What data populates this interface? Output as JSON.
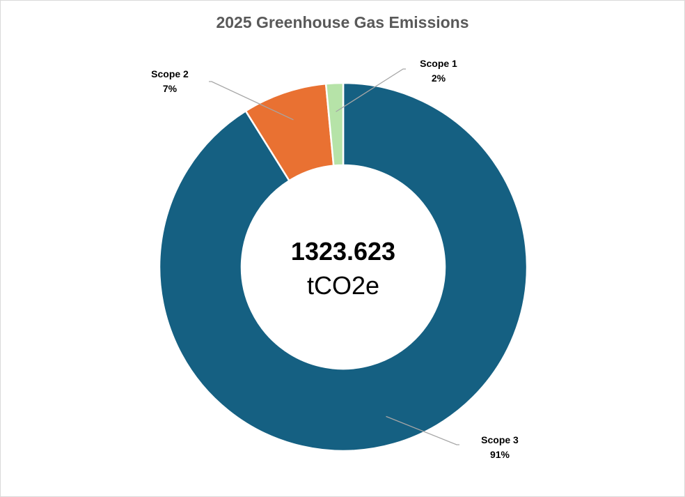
{
  "chart_data": {
    "type": "pie",
    "variant": "donut",
    "title": "2025 Greenhouse Gas Emissions",
    "center_label": {
      "value": "1323.623",
      "unit": "tCO2e"
    },
    "categories": [
      "Scope 1",
      "Scope 2",
      "Scope 3"
    ],
    "values": [
      1.5,
      7.4,
      91.1
    ],
    "value_labels": [
      "2%",
      "7%",
      "91%"
    ],
    "colors": [
      "#b6e3a8",
      "#e97132",
      "#156082"
    ],
    "legend": "none",
    "segment_border_color": "#ffffff"
  }
}
